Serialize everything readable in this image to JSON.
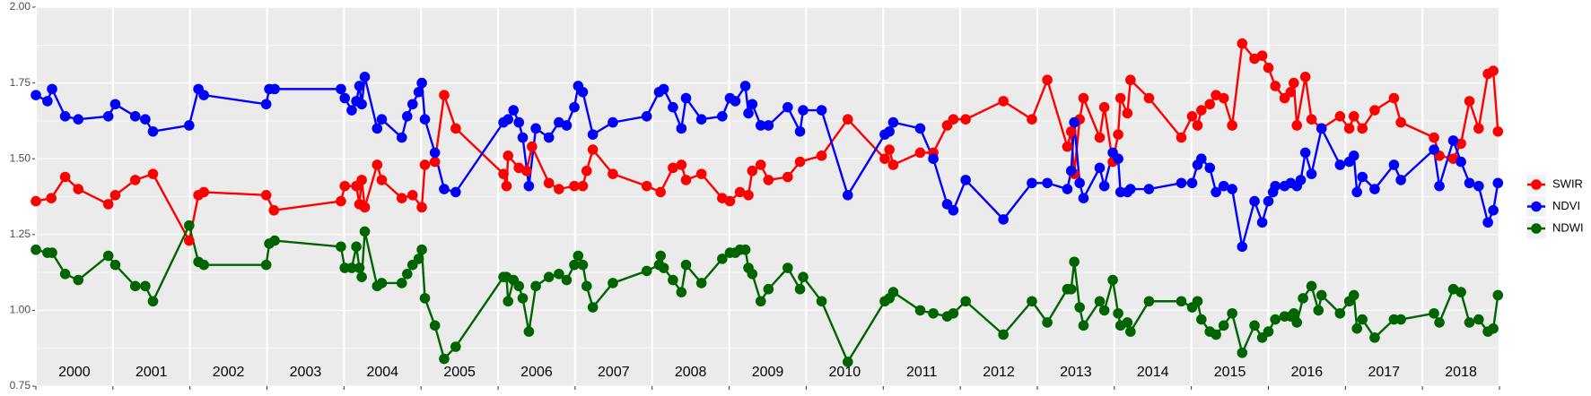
{
  "chart_data": {
    "type": "line",
    "xlim": [
      2000,
      2019
    ],
    "xticks": [
      2000,
      2001,
      2002,
      2003,
      2004,
      2005,
      2006,
      2007,
      2008,
      2009,
      2010,
      2011,
      2012,
      2013,
      2014,
      2015,
      2016,
      2017,
      2018,
      2019
    ],
    "year_labels": [
      "2000",
      "2001",
      "2002",
      "2003",
      "2004",
      "2005",
      "2006",
      "2007",
      "2008",
      "2009",
      "2010",
      "2011",
      "2012",
      "2013",
      "2014",
      "2015",
      "2016",
      "2017",
      "2018"
    ],
    "ylim": [
      0.75,
      2
    ],
    "yticks": [
      0.75,
      {
        "value": 1,
        "label": "1.00"
      },
      {
        "value": 1.25,
        "label": "1.25"
      },
      {
        "value": 1.5,
        "label": "1.50"
      },
      {
        "value": 1.75,
        "label": "1.75"
      },
      {
        "value": 2,
        "label": "2.00"
      }
    ],
    "yticks_minor": [
      0.875,
      1.125,
      1.375,
      1.625,
      1.875
    ],
    "grid": true,
    "legend": "right",
    "series": [
      {
        "name": "SWIR",
        "color": "#ff0000",
        "x": [
          2000.0,
          2000.2,
          2000.38,
          2000.55,
          2000.94,
          2001.03,
          2001.29,
          2001.52,
          2001.99,
          2002.11,
          2002.18,
          2002.99,
          2003.09,
          2003.96,
          2004.01,
          2004.16,
          2004.2,
          2004.23,
          2004.27,
          2004.43,
          2004.49,
          2004.75,
          2004.89,
          2005.01,
          2005.05,
          2005.18,
          2005.3,
          2005.45,
          2006.07,
          2006.11,
          2006.13,
          2006.27,
          2006.37,
          2006.44,
          2006.66,
          2006.79,
          2006.99,
          2007.1,
          2007.15,
          2007.23,
          2007.49,
          2007.93,
          2008.11,
          2008.27,
          2008.38,
          2008.44,
          2008.64,
          2008.91,
          2009.01,
          2009.14,
          2009.25,
          2009.3,
          2009.41,
          2009.51,
          2009.76,
          2009.92,
          2010.2,
          2010.54,
          2011.02,
          2011.08,
          2011.13,
          2011.48,
          2011.65,
          2011.83,
          2011.91,
          2012.07,
          2012.56,
          2012.93,
          2013.13,
          2013.39,
          2013.44,
          2013.48,
          2013.55,
          2013.6,
          2013.81,
          2013.87,
          2013.98,
          2014.05,
          2014.08,
          2014.17,
          2014.21,
          2014.45,
          2014.87,
          2015.01,
          2015.08,
          2015.13,
          2015.24,
          2015.32,
          2015.42,
          2015.53,
          2015.66,
          2015.82,
          2015.92,
          2016.0,
          2016.09,
          2016.21,
          2016.29,
          2016.33,
          2016.37,
          2016.48,
          2016.56,
          2016.69,
          2016.93,
          2017.05,
          2017.11,
          2017.22,
          2017.38,
          2017.63,
          2017.72,
          2018.15,
          2018.22,
          2018.4,
          2018.5,
          2018.61,
          2018.73,
          2018.85,
          2018.92,
          2018.98
        ],
        "values": [
          1.36,
          1.37,
          1.44,
          1.4,
          1.35,
          1.38,
          1.43,
          1.45,
          1.23,
          1.38,
          1.39,
          1.38,
          1.33,
          1.36,
          1.41,
          1.41,
          1.35,
          1.43,
          1.34,
          1.48,
          1.43,
          1.37,
          1.38,
          1.34,
          1.48,
          1.49,
          1.71,
          1.6,
          1.45,
          1.41,
          1.51,
          1.47,
          1.46,
          1.54,
          1.42,
          1.4,
          1.41,
          1.41,
          1.46,
          1.53,
          1.45,
          1.41,
          1.39,
          1.47,
          1.48,
          1.43,
          1.45,
          1.37,
          1.36,
          1.39,
          1.38,
          1.46,
          1.48,
          1.43,
          1.44,
          1.49,
          1.51,
          1.63,
          1.5,
          1.53,
          1.48,
          1.52,
          1.52,
          1.61,
          1.63,
          1.63,
          1.69,
          1.63,
          1.76,
          1.54,
          1.59,
          1.45,
          1.63,
          1.7,
          1.57,
          1.67,
          1.49,
          1.58,
          1.7,
          1.65,
          1.76,
          1.7,
          1.57,
          1.64,
          1.61,
          1.66,
          1.68,
          1.71,
          1.7,
          1.61,
          1.88,
          1.83,
          1.84,
          1.8,
          1.74,
          1.7,
          1.72,
          1.75,
          1.61,
          1.77,
          1.63,
          1.6,
          1.64,
          1.6,
          1.64,
          1.6,
          1.66,
          1.7,
          1.62,
          1.57,
          1.51,
          1.5,
          1.55,
          1.69,
          1.6,
          1.78,
          1.79,
          1.59
        ]
      },
      {
        "name": "NDVI",
        "color": "#0000ff",
        "x": [
          2000.0,
          2000.15,
          2000.21,
          2000.38,
          2000.55,
          2000.94,
          2001.03,
          2001.29,
          2001.42,
          2001.52,
          2001.99,
          2002.11,
          2002.18,
          2002.99,
          2003.03,
          2003.1,
          2003.96,
          2004.01,
          2004.1,
          2004.16,
          2004.2,
          2004.23,
          2004.27,
          2004.43,
          2004.49,
          2004.75,
          2004.82,
          2004.89,
          2004.97,
          2005.01,
          2005.05,
          2005.18,
          2005.3,
          2005.45,
          2006.07,
          2006.13,
          2006.2,
          2006.27,
          2006.32,
          2006.4,
          2006.49,
          2006.66,
          2006.79,
          2006.89,
          2006.99,
          2007.04,
          2007.1,
          2007.23,
          2007.49,
          2007.93,
          2008.09,
          2008.15,
          2008.27,
          2008.38,
          2008.44,
          2008.64,
          2008.91,
          2009.01,
          2009.08,
          2009.21,
          2009.25,
          2009.3,
          2009.41,
          2009.51,
          2009.76,
          2009.92,
          2009.96,
          2010.2,
          2010.54,
          2011.02,
          2011.08,
          2011.13,
          2011.48,
          2011.65,
          2011.83,
          2011.91,
          2012.07,
          2012.56,
          2012.93,
          2013.13,
          2013.39,
          2013.44,
          2013.48,
          2013.55,
          2013.6,
          2013.81,
          2013.87,
          2013.98,
          2014.05,
          2014.08,
          2014.17,
          2014.21,
          2014.45,
          2014.87,
          2015.01,
          2015.08,
          2015.13,
          2015.24,
          2015.32,
          2015.42,
          2015.53,
          2015.66,
          2015.82,
          2015.92,
          2016.0,
          2016.06,
          2016.09,
          2016.21,
          2016.29,
          2016.37,
          2016.42,
          2016.48,
          2016.56,
          2016.69,
          2016.93,
          2017.05,
          2017.11,
          2017.15,
          2017.22,
          2017.38,
          2017.63,
          2017.72,
          2018.15,
          2018.22,
          2018.4,
          2018.5,
          2018.61,
          2018.73,
          2018.85,
          2018.92,
          2018.98
        ],
        "values": [
          1.71,
          1.69,
          1.73,
          1.64,
          1.63,
          1.64,
          1.68,
          1.64,
          1.63,
          1.59,
          1.61,
          1.73,
          1.71,
          1.68,
          1.73,
          1.73,
          1.73,
          1.7,
          1.66,
          1.69,
          1.74,
          1.68,
          1.77,
          1.6,
          1.63,
          1.57,
          1.64,
          1.68,
          1.72,
          1.75,
          1.63,
          1.52,
          1.4,
          1.39,
          1.62,
          1.63,
          1.66,
          1.62,
          1.57,
          1.41,
          1.6,
          1.57,
          1.62,
          1.61,
          1.67,
          1.74,
          1.72,
          1.58,
          1.62,
          1.64,
          1.72,
          1.73,
          1.67,
          1.6,
          1.7,
          1.63,
          1.64,
          1.7,
          1.69,
          1.74,
          1.65,
          1.68,
          1.61,
          1.61,
          1.67,
          1.59,
          1.66,
          1.66,
          1.38,
          1.58,
          1.59,
          1.62,
          1.6,
          1.5,
          1.35,
          1.33,
          1.43,
          1.3,
          1.42,
          1.42,
          1.4,
          1.46,
          1.62,
          1.42,
          1.37,
          1.47,
          1.41,
          1.52,
          1.5,
          1.39,
          1.39,
          1.4,
          1.4,
          1.42,
          1.42,
          1.48,
          1.5,
          1.47,
          1.39,
          1.41,
          1.4,
          1.21,
          1.36,
          1.29,
          1.36,
          1.39,
          1.41,
          1.41,
          1.42,
          1.41,
          1.43,
          1.52,
          1.45,
          1.6,
          1.48,
          1.49,
          1.51,
          1.39,
          1.44,
          1.4,
          1.48,
          1.43,
          1.53,
          1.41,
          1.56,
          1.49,
          1.42,
          1.41,
          1.29,
          1.33,
          1.42
        ]
      },
      {
        "name": "NDWI",
        "color": "#006400",
        "x": [
          2000.0,
          2000.15,
          2000.21,
          2000.38,
          2000.55,
          2000.94,
          2001.03,
          2001.29,
          2001.42,
          2001.52,
          2001.99,
          2002.11,
          2002.18,
          2002.99,
          2003.03,
          2003.1,
          2003.96,
          2004.01,
          2004.1,
          2004.16,
          2004.2,
          2004.23,
          2004.27,
          2004.43,
          2004.49,
          2004.75,
          2004.82,
          2004.89,
          2004.97,
          2005.01,
          2005.05,
          2005.18,
          2005.3,
          2005.45,
          2006.07,
          2006.11,
          2006.13,
          2006.2,
          2006.27,
          2006.32,
          2006.4,
          2006.49,
          2006.66,
          2006.79,
          2006.89,
          2006.99,
          2007.04,
          2007.1,
          2007.15,
          2007.23,
          2007.49,
          2007.93,
          2008.09,
          2008.11,
          2008.15,
          2008.27,
          2008.38,
          2008.44,
          2008.64,
          2008.91,
          2009.01,
          2009.08,
          2009.14,
          2009.21,
          2009.25,
          2009.3,
          2009.41,
          2009.51,
          2009.76,
          2009.92,
          2009.96,
          2010.2,
          2010.54,
          2011.02,
          2011.08,
          2011.13,
          2011.48,
          2011.65,
          2011.83,
          2011.91,
          2012.07,
          2012.56,
          2012.93,
          2013.13,
          2013.39,
          2013.44,
          2013.48,
          2013.55,
          2013.6,
          2013.81,
          2013.87,
          2013.98,
          2014.05,
          2014.08,
          2014.17,
          2014.21,
          2014.45,
          2014.87,
          2015.01,
          2015.08,
          2015.13,
          2015.24,
          2015.32,
          2015.42,
          2015.53,
          2015.66,
          2015.82,
          2015.92,
          2016.0,
          2016.09,
          2016.21,
          2016.29,
          2016.33,
          2016.37,
          2016.45,
          2016.56,
          2016.65,
          2016.69,
          2016.93,
          2017.05,
          2017.11,
          2017.15,
          2017.22,
          2017.38,
          2017.63,
          2017.72,
          2018.15,
          2018.22,
          2018.4,
          2018.5,
          2018.61,
          2018.73,
          2018.85,
          2018.92,
          2018.98
        ],
        "values": [
          1.2,
          1.19,
          1.19,
          1.12,
          1.1,
          1.18,
          1.15,
          1.08,
          1.08,
          1.03,
          1.28,
          1.16,
          1.15,
          1.15,
          1.22,
          1.23,
          1.21,
          1.14,
          1.14,
          1.21,
          1.14,
          1.11,
          1.26,
          1.08,
          1.09,
          1.09,
          1.12,
          1.15,
          1.17,
          1.2,
          1.04,
          0.95,
          0.84,
          0.88,
          1.11,
          1.11,
          1.03,
          1.1,
          1.08,
          1.04,
          0.93,
          1.08,
          1.11,
          1.12,
          1.1,
          1.15,
          1.18,
          1.15,
          1.08,
          1.01,
          1.09,
          1.13,
          1.15,
          1.18,
          1.14,
          1.1,
          1.06,
          1.15,
          1.09,
          1.17,
          1.19,
          1.19,
          1.2,
          1.2,
          1.14,
          1.12,
          1.03,
          1.07,
          1.14,
          1.07,
          1.11,
          1.03,
          0.83,
          1.03,
          1.04,
          1.06,
          1.0,
          0.99,
          0.98,
          0.99,
          1.03,
          0.92,
          1.03,
          0.96,
          1.07,
          1.07,
          1.16,
          1.01,
          0.95,
          1.03,
          1.0,
          1.1,
          0.99,
          0.95,
          0.96,
          0.93,
          1.03,
          1.03,
          1.01,
          1.03,
          0.97,
          0.93,
          0.92,
          0.95,
          0.99,
          0.86,
          0.95,
          0.91,
          0.93,
          0.97,
          0.98,
          0.98,
          0.99,
          0.96,
          1.04,
          1.08,
          1.0,
          1.05,
          0.99,
          1.03,
          1.05,
          0.94,
          0.97,
          0.91,
          0.97,
          0.97,
          0.99,
          0.96,
          1.07,
          1.06,
          0.96,
          0.97,
          0.93,
          0.94,
          1.05
        ]
      }
    ]
  }
}
